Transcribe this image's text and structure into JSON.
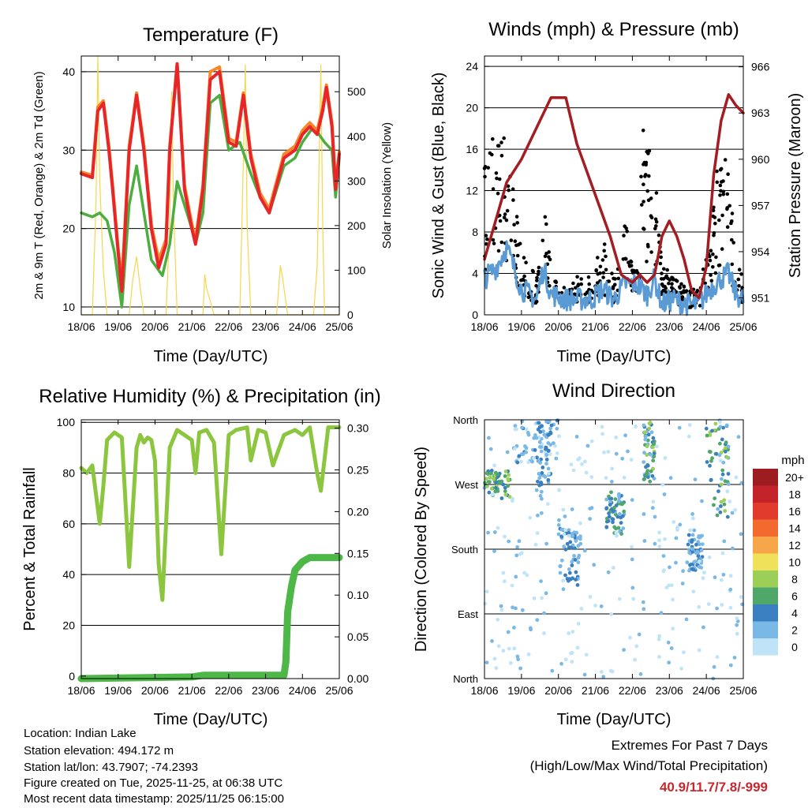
{
  "colors": {
    "temp2m": "#e8262a",
    "temp9m": "#f5892a",
    "dewpoint": "#4cae3e",
    "solar": "#f7d64a",
    "wind": "#5a9bd5",
    "gust": "#000000",
    "pressure": "#a31d22",
    "rh": "#8cc63f",
    "precip": "#4db848",
    "extreme": "#c8282d"
  },
  "time_ticks": [
    "18/06",
    "19/06",
    "20/06",
    "21/06",
    "22/06",
    "23/06",
    "24/06",
    "25/06"
  ],
  "xlabel": "Time (Day/UTC)",
  "temperature": {
    "title": "Temperature (F)",
    "ylabel_left": "2m & 9m T (Red, Orange) & 2m Td (Green)",
    "ylabel_right": "Solar Insolation (Yellow)",
    "left_ticks": [
      "10",
      "20",
      "30",
      "40"
    ],
    "right_ticks": [
      "0",
      "100",
      "200",
      "300",
      "400",
      "500"
    ]
  },
  "winds": {
    "title": "Winds (mph) & Pressure (mb)",
    "ylabel_left": "Sonic Wind & Gust (Blue, Black)",
    "ylabel_right": "Station Pressure (Maroon)",
    "left_ticks": [
      "0",
      "4",
      "8",
      "12",
      "16",
      "20",
      "24"
    ],
    "right_ticks": [
      "951",
      "954",
      "957",
      "960",
      "963",
      "966"
    ]
  },
  "humidity": {
    "title": "Relative Humidity (%) & Precipitation (in)",
    "ylabel_left": "Percent & Total Rainfall",
    "left_ticks": [
      "0",
      "20",
      "40",
      "60",
      "80",
      "100"
    ],
    "right_ticks": [
      "0.00",
      "0.05",
      "0.10",
      "0.15",
      "0.20",
      "0.25",
      "0.30"
    ]
  },
  "direction": {
    "title": "Wind Direction",
    "ylabel_left": "Direction (Colored By Speed)",
    "dir_ticks": [
      "North",
      "East",
      "South",
      "West",
      "North"
    ],
    "legend_title": "mph",
    "legend_labels": [
      "20+",
      "18",
      "16",
      "14",
      "12",
      "10",
      "8",
      "6",
      "4",
      "2",
      "0"
    ],
    "legend_colors": [
      "#9c1c1f",
      "#c4232a",
      "#e23b2e",
      "#f26a2e",
      "#f7a74a",
      "#efe15a",
      "#9ccf57",
      "#4fa86a",
      "#3a7fbf",
      "#7ab8e6",
      "#bfe3f7"
    ]
  },
  "chart_data": [
    {
      "type": "line",
      "title": "Temperature (F)",
      "xlabel": "Time (Day/UTC)",
      "ylabel": "2m & 9m T (Red, Orange) & 2m Td (Green)",
      "y2label": "Solar Insolation (Yellow)",
      "xlim": [
        0,
        7
      ],
      "ylim": [
        9,
        42
      ],
      "y2lim": [
        0,
        580
      ],
      "series": [
        {
          "name": "2m T",
          "axis": "left",
          "x": [
            0,
            0.3,
            0.45,
            0.6,
            0.75,
            0.85,
            1.0,
            1.1,
            1.3,
            1.5,
            1.7,
            1.9,
            2.1,
            2.3,
            2.4,
            2.6,
            2.8,
            3.0,
            3.1,
            3.3,
            3.5,
            3.75,
            4.0,
            4.2,
            4.4,
            4.6,
            4.85,
            5.1,
            5.5,
            5.8,
            6.0,
            6.2,
            6.4,
            6.55,
            6.65,
            6.8,
            6.9,
            7.0
          ],
          "values": [
            27,
            26.5,
            35,
            36,
            30,
            25,
            17,
            12,
            30,
            37,
            30,
            20,
            15,
            18,
            30,
            41,
            25,
            20,
            18,
            25,
            39,
            40,
            31,
            30.5,
            37,
            29,
            24,
            22,
            29,
            30,
            32,
            33,
            32,
            35,
            38,
            33,
            25,
            29.5
          ]
        },
        {
          "name": "9m T",
          "axis": "left",
          "x": [
            0,
            0.3,
            0.45,
            0.6,
            0.75,
            0.85,
            1.0,
            1.1,
            1.3,
            1.5,
            1.7,
            1.9,
            2.1,
            2.3,
            2.4,
            2.6,
            2.8,
            3.0,
            3.1,
            3.3,
            3.5,
            3.75,
            4.0,
            4.2,
            4.4,
            4.6,
            4.85,
            5.1,
            5.5,
            5.8,
            6.0,
            6.2,
            6.4,
            6.55,
            6.65,
            6.8,
            6.9,
            7.0
          ],
          "values": [
            27.2,
            26.8,
            35.5,
            36.3,
            30.5,
            25.5,
            17.5,
            13,
            30.5,
            37.3,
            30.5,
            20.5,
            16,
            18.6,
            30.5,
            41,
            25.5,
            20.6,
            18.6,
            25.5,
            40,
            40.6,
            31.5,
            31,
            37.3,
            29.5,
            24.5,
            22.5,
            29.5,
            30.5,
            32.5,
            33.5,
            32.5,
            35.5,
            38.3,
            33.5,
            25.5,
            29.8
          ]
        },
        {
          "name": "2m Td",
          "axis": "left",
          "x": [
            0,
            0.3,
            0.5,
            0.7,
            0.9,
            1.1,
            1.3,
            1.5,
            1.7,
            1.9,
            2.2,
            2.4,
            2.6,
            2.8,
            3.0,
            3.1,
            3.3,
            3.5,
            3.75,
            4.0,
            4.3,
            4.6,
            4.85,
            5.1,
            5.5,
            5.8,
            6.0,
            6.3,
            6.6,
            6.8,
            6.9,
            7.0
          ],
          "values": [
            22,
            21.5,
            22,
            21,
            17,
            10,
            23,
            28,
            22,
            16,
            14,
            18,
            26,
            23,
            20,
            18,
            22,
            36,
            37,
            30,
            31,
            27,
            24,
            22,
            28,
            29,
            31,
            33,
            31,
            30,
            24,
            29
          ]
        },
        {
          "name": "Solar Insolation",
          "axis": "right",
          "x": [
            0,
            0.3,
            0.4,
            0.45,
            0.5,
            0.6,
            0.7,
            1.0,
            1.3,
            1.4,
            1.5,
            1.6,
            1.7,
            2.0,
            2.3,
            2.4,
            2.45,
            2.5,
            2.6,
            3.0,
            3.3,
            3.35,
            3.4,
            3.5,
            3.6,
            4.0,
            4.3,
            4.4,
            4.45,
            4.5,
            4.6,
            5.0,
            5.3,
            5.4,
            5.45,
            5.5,
            5.6,
            6.0,
            6.3,
            6.4,
            6.5,
            6.55,
            6.6,
            7.0
          ],
          "values": [
            0,
            0,
            250,
            580,
            300,
            100,
            0,
            0,
            0,
            80,
            130,
            60,
            0,
            0,
            0,
            200,
            500,
            250,
            0,
            0,
            0,
            90,
            60,
            30,
            0,
            0,
            0,
            350,
            560,
            200,
            0,
            0,
            0,
            110,
            90,
            60,
            0,
            0,
            0,
            110,
            560,
            200,
            0,
            0
          ]
        }
      ]
    },
    {
      "type": "line",
      "title": "Winds (mph) & Pressure (mb)",
      "xlabel": "Time (Day/UTC)",
      "ylabel": "Sonic Wind & Gust (Blue, Black)",
      "y2label": "Station Pressure (Maroon)",
      "xlim": [
        0,
        7
      ],
      "ylim": [
        0,
        25
      ],
      "y2lim": [
        949.9,
        966.7
      ],
      "series": [
        {
          "name": "Station Pressure",
          "axis": "right",
          "x": [
            0,
            0.3,
            0.6,
            1.0,
            1.4,
            1.8,
            2.2,
            2.5,
            2.8,
            3.1,
            3.4,
            3.7,
            4.0,
            4.2,
            4.4,
            4.6,
            4.8,
            5.0,
            5.2,
            5.4,
            5.6,
            5.8,
            6.0,
            6.2,
            6.4,
            6.6,
            6.8,
            7.0
          ],
          "values": [
            953.5,
            956,
            958.5,
            960,
            962,
            964,
            964,
            961,
            959,
            957,
            955,
            952.5,
            952,
            952.5,
            952,
            952.5,
            955,
            956,
            955,
            953.5,
            951.5,
            951,
            953,
            959,
            962.5,
            964.2,
            963.5,
            963
          ]
        },
        {
          "name": "Sonic Wind",
          "axis": "left",
          "x": [
            0,
            0.3,
            0.6,
            1.0,
            1.4,
            1.6,
            1.8,
            2.2,
            2.5,
            2.9,
            3.2,
            3.5,
            3.8,
            4.1,
            4.4,
            4.6,
            4.8,
            5.1,
            5.5,
            5.8,
            6.1,
            6.4,
            6.6,
            6.8,
            7.0
          ],
          "values": [
            3.5,
            4.5,
            6.5,
            2.5,
            1.5,
            4.5,
            2,
            1.5,
            1.5,
            1.5,
            2.5,
            1.5,
            3,
            3,
            2,
            3.5,
            1,
            1.5,
            1,
            1,
            2.5,
            3.5,
            4,
            2,
            1.5
          ]
        },
        {
          "name": "Gust",
          "axis": "left",
          "x": [
            0,
            0.3,
            0.5,
            0.7,
            1.0,
            1.4,
            1.6,
            1.8,
            2.2,
            2.5,
            2.8,
            3.2,
            3.5,
            3.8,
            4.1,
            4.3,
            4.6,
            4.8,
            5.1,
            5.5,
            5.8,
            6.1,
            6.3,
            6.6,
            6.8,
            7.0
          ],
          "values": [
            12,
            15,
            17,
            12,
            5,
            3,
            9,
            4,
            2,
            3,
            3,
            6,
            3,
            8,
            3,
            15,
            12,
            4,
            3,
            2,
            2,
            6,
            12,
            12,
            4,
            3
          ]
        }
      ]
    },
    {
      "type": "line",
      "title": "Relative Humidity (%) & Precipitation (in)",
      "xlabel": "Time (Day/UTC)",
      "ylabel": "Percent & Total Rainfall",
      "y2lim": [
        0,
        0.31
      ],
      "ylim": [
        -1,
        101
      ],
      "xlim": [
        0,
        7
      ],
      "series": [
        {
          "name": "Relative Humidity",
          "axis": "left",
          "x": [
            0,
            0.15,
            0.3,
            0.5,
            0.6,
            0.7,
            0.9,
            1.0,
            1.1,
            1.3,
            1.5,
            1.6,
            1.7,
            1.8,
            1.9,
            2.0,
            2.1,
            2.2,
            2.4,
            2.6,
            2.8,
            3.0,
            3.1,
            3.2,
            3.4,
            3.6,
            3.8,
            4.0,
            4.2,
            4.5,
            4.6,
            4.8,
            5.0,
            5.2,
            5.5,
            5.8,
            6.0,
            6.2,
            6.4,
            6.5,
            6.7,
            7.0
          ],
          "values": [
            82,
            80,
            83,
            60,
            75,
            93,
            96,
            95,
            94,
            43,
            90,
            95,
            92,
            94,
            93,
            85,
            44,
            30,
            90,
            97,
            95,
            93,
            80,
            96,
            97,
            92,
            48,
            95,
            97,
            98,
            85,
            97,
            96,
            83,
            95,
            97,
            95,
            98,
            80,
            73,
            98,
            98
          ]
        },
        {
          "name": "Total Rainfall",
          "axis": "right",
          "x": [
            0,
            3.0,
            3.3,
            5.5,
            5.55,
            5.6,
            5.7,
            5.8,
            6.0,
            6.2,
            6.6,
            7.0
          ],
          "values": [
            0,
            0.002,
            0.004,
            0.004,
            0.02,
            0.08,
            0.11,
            0.13,
            0.14,
            0.145,
            0.145,
            0.145
          ]
        }
      ]
    },
    {
      "type": "scatter",
      "title": "Wind Direction",
      "xlabel": "Time (Day/UTC)",
      "ylabel": "Direction (Colored By Speed)",
      "xlim": [
        0,
        7
      ],
      "ylim": [
        0,
        360
      ],
      "y_tick_values": [
        0,
        90,
        180,
        270,
        360
      ],
      "y_tick_labels": [
        "North",
        "East",
        "South",
        "West",
        "North"
      ],
      "color_scale_mph": [
        0,
        2,
        4,
        6,
        8,
        10,
        12,
        14,
        16,
        18,
        20
      ],
      "clusters": [
        {
          "x": [
            0,
            0.7
          ],
          "dir": [
            250,
            290
          ],
          "speed": "4-8"
        },
        {
          "x": [
            0.8,
            2.0
          ],
          "dir": [
            300,
            360
          ],
          "speed": "0-4"
        },
        {
          "x": [
            1.4,
            1.8
          ],
          "dir": [
            250,
            360
          ],
          "speed": "2-4"
        },
        {
          "x": [
            2.0,
            2.6
          ],
          "dir": [
            130,
            210
          ],
          "speed": "2-4"
        },
        {
          "x": [
            3.3,
            3.8
          ],
          "dir": [
            200,
            260
          ],
          "speed": "2-6"
        },
        {
          "x": [
            4.3,
            4.6
          ],
          "dir": [
            270,
            360
          ],
          "speed": "2-8"
        },
        {
          "x": [
            5.5,
            5.9
          ],
          "dir": [
            150,
            200
          ],
          "speed": "2-4"
        },
        {
          "x": [
            6.0,
            6.6
          ],
          "dir": [
            220,
            360
          ],
          "speed": "2-8"
        },
        {
          "x": [
            0,
            7.0
          ],
          "dir": [
            0,
            360
          ],
          "speed": "0-2"
        }
      ]
    }
  ],
  "info": {
    "location": "Location: Indian Lake",
    "elevation": "Station elevation: 494.172 m",
    "latlon": "Station lat/lon: 43.7907; -74.2393",
    "created": "Figure created on Tue, 2025-11-25, at 06:38 UTC",
    "timestamp": "Most recent data timestamp: 2025/11/25 06:15:00"
  },
  "extremes": {
    "line1": "Extremes For Past 7 Days",
    "line2": "(High/Low/Max Wind/Total Precipitation)",
    "values": "40.9/11.7/7.8/-999"
  }
}
